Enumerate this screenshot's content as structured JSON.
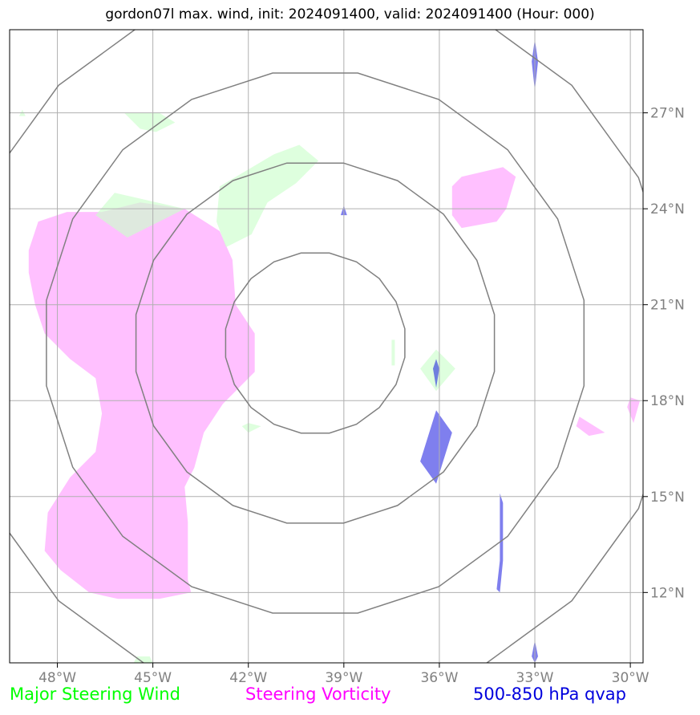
{
  "title": "gordon07l max. wind, init: 2024091400, valid: 2024091400 (Hour: 000)",
  "map": {
    "lon_range": [
      -49.5,
      -29.6
    ],
    "lat_range": [
      9.8,
      29.6
    ],
    "lon_ticks": [
      {
        "value": -48,
        "label": "48°W"
      },
      {
        "value": -45,
        "label": "45°W"
      },
      {
        "value": -42,
        "label": "42°W"
      },
      {
        "value": -39,
        "label": "39°W"
      },
      {
        "value": -36,
        "label": "36°W"
      },
      {
        "value": -33,
        "label": "33°W"
      },
      {
        "value": -30,
        "label": "30°W"
      }
    ],
    "lat_ticks": [
      {
        "value": 12,
        "label": "12°N"
      },
      {
        "value": 15,
        "label": "15°N"
      },
      {
        "value": 18,
        "label": "18°N"
      },
      {
        "value": 21,
        "label": "21°N"
      },
      {
        "value": 24,
        "label": "24°N"
      },
      {
        "value": 27,
        "label": "27°N"
      }
    ],
    "gridlines": true,
    "range_rings": {
      "center": {
        "lon": -39.9,
        "lat": 19.8
      },
      "radius_deg": [
        2.85,
        5.7,
        8.55,
        11.4
      ],
      "color": "#808080"
    },
    "colors": {
      "steering_wind": "#ccffcc",
      "steering_vorticity": "#ff99ff",
      "qvap": "#0000dd",
      "grid": "#b0b0b0",
      "tick_label": "#808080"
    },
    "fields": {
      "steering_vorticity": [
        [
          [
            -46.6,
            23.9
          ],
          [
            -45.4,
            24.2
          ],
          [
            -44.0,
            24.0
          ],
          [
            -42.9,
            23.3
          ],
          [
            -42.5,
            22.4
          ],
          [
            -42.4,
            21.0
          ],
          [
            -41.8,
            20.1
          ],
          [
            -41.8,
            18.9
          ],
          [
            -42.8,
            17.9
          ],
          [
            -43.4,
            17.0
          ],
          [
            -43.7,
            15.9
          ],
          [
            -44.0,
            15.3
          ],
          [
            -43.9,
            14.2
          ],
          [
            -43.9,
            12.4
          ],
          [
            -43.8,
            12.0
          ],
          [
            -44.8,
            11.8
          ],
          [
            -46.1,
            11.8
          ],
          [
            -47.0,
            12.0
          ],
          [
            -47.9,
            12.7
          ],
          [
            -48.4,
            13.3
          ],
          [
            -48.3,
            14.5
          ],
          [
            -47.6,
            15.6
          ],
          [
            -46.8,
            16.4
          ],
          [
            -46.6,
            17.6
          ],
          [
            -46.8,
            18.7
          ],
          [
            -47.6,
            19.3
          ],
          [
            -48.4,
            20.1
          ],
          [
            -48.7,
            21.0
          ],
          [
            -48.9,
            22.0
          ],
          [
            -48.9,
            22.7
          ],
          [
            -48.6,
            23.6
          ],
          [
            -47.7,
            23.9
          ]
        ],
        [
          [
            -35.3,
            25.0
          ],
          [
            -34.0,
            25.3
          ],
          [
            -33.6,
            25.0
          ],
          [
            -33.9,
            24.0
          ],
          [
            -34.2,
            23.6
          ],
          [
            -35.3,
            23.4
          ],
          [
            -35.6,
            23.8
          ],
          [
            -35.6,
            24.7
          ]
        ],
        [
          [
            -31.6,
            17.5
          ],
          [
            -30.8,
            17.0
          ],
          [
            -31.3,
            16.9
          ],
          [
            -31.7,
            17.2
          ]
        ],
        [
          [
            -30.0,
            18.1
          ],
          [
            -29.7,
            18.0
          ],
          [
            -29.9,
            17.3
          ],
          [
            -30.1,
            17.8
          ]
        ]
      ],
      "steering_wind": [
        [
          [
            -42.9,
            24.7
          ],
          [
            -41.2,
            25.7
          ],
          [
            -40.4,
            26.0
          ],
          [
            -39.8,
            25.5
          ],
          [
            -40.5,
            24.8
          ],
          [
            -41.4,
            24.2
          ],
          [
            -41.9,
            23.2
          ],
          [
            -42.7,
            22.8
          ],
          [
            -43.0,
            23.6
          ]
        ],
        [
          [
            -46.2,
            24.5
          ],
          [
            -44.0,
            24.0
          ],
          [
            -45.8,
            23.1
          ],
          [
            -46.8,
            23.8
          ]
        ],
        [
          [
            -45.9,
            27.0
          ],
          [
            -44.8,
            27.0
          ],
          [
            -44.3,
            26.7
          ],
          [
            -44.9,
            26.4
          ],
          [
            -45.4,
            26.5
          ]
        ],
        [
          [
            -36.1,
            19.6
          ],
          [
            -35.5,
            19.0
          ],
          [
            -36.1,
            18.3
          ],
          [
            -36.6,
            19.0
          ]
        ],
        [
          [
            -42.0,
            17.3
          ],
          [
            -41.6,
            17.2
          ],
          [
            -42.0,
            17.0
          ],
          [
            -42.2,
            17.2
          ]
        ],
        [
          [
            -45.5,
            10.0
          ],
          [
            -45.1,
            10.0
          ],
          [
            -45.0,
            9.8
          ],
          [
            -45.6,
            9.8
          ]
        ],
        [
          [
            -49.1,
            27.1
          ],
          [
            -49.0,
            26.9
          ],
          [
            -49.2,
            26.9
          ]
        ],
        [
          [
            -37.5,
            19.9
          ],
          [
            -37.5,
            19.1
          ],
          [
            -37.4,
            19.1
          ],
          [
            -37.4,
            19.9
          ]
        ]
      ],
      "qvap": [
        [
          [
            -36.1,
            17.7
          ],
          [
            -35.6,
            17.0
          ],
          [
            -36.1,
            15.4
          ],
          [
            -36.6,
            16.1
          ]
        ],
        [
          [
            -36.1,
            19.3
          ],
          [
            -36.0,
            19.0
          ],
          [
            -36.1,
            18.4
          ],
          [
            -36.2,
            19.0
          ]
        ],
        [
          [
            -33.0,
            29.3
          ],
          [
            -32.9,
            28.6
          ],
          [
            -33.0,
            27.7
          ],
          [
            -33.1,
            28.6
          ]
        ],
        [
          [
            -34.1,
            15.1
          ],
          [
            -34.0,
            14.8
          ],
          [
            -34.0,
            13.0
          ],
          [
            -34.1,
            12.0
          ],
          [
            -34.2,
            12.1
          ],
          [
            -34.1,
            13.0
          ],
          [
            -34.1,
            14.5
          ]
        ],
        [
          [
            -33.0,
            10.5
          ],
          [
            -32.9,
            10.0
          ],
          [
            -33.0,
            9.8
          ],
          [
            -33.1,
            10.0
          ]
        ],
        [
          [
            -39.0,
            24.1
          ],
          [
            -38.9,
            23.8
          ],
          [
            -39.1,
            23.8
          ]
        ]
      ]
    }
  },
  "legend": [
    {
      "label": "Major Steering Wind",
      "color": "#00ff00"
    },
    {
      "label": "Steering Vorticity",
      "color": "#ff00ff"
    },
    {
      "label": "500-850 hPa qvap",
      "color": "#0000dd"
    }
  ]
}
